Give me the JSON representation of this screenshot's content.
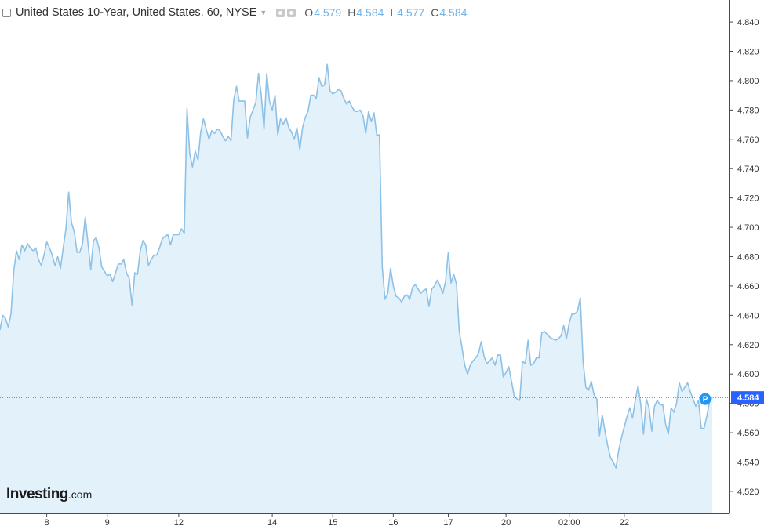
{
  "legend": {
    "title": "United States 10-Year, United States, 60, NYSE",
    "o_label": "O",
    "o_value": "4.579",
    "h_label": "H",
    "h_value": "4.584",
    "l_label": "L",
    "l_value": "4.577",
    "c_label": "C",
    "c_value": "4.584"
  },
  "brand": {
    "name": "Investing",
    "suffix": ".com"
  },
  "colors": {
    "line": "#8ec1e6",
    "fill": "#e3f1fb",
    "price_tag": "#2962ff",
    "p_marker": "#2196f3"
  },
  "chart_data": {
    "type": "area",
    "ylim": [
      4.505,
      4.855
    ],
    "y_ticks": [
      4.52,
      4.54,
      4.56,
      4.58,
      4.6,
      4.62,
      4.64,
      4.66,
      4.68,
      4.7,
      4.72,
      4.74,
      4.76,
      4.78,
      4.8,
      4.82,
      4.84
    ],
    "y_tick_labels": [
      "4.520",
      "4.540",
      "4.560",
      "4.580",
      "4.600",
      "4.620",
      "4.640",
      "4.660",
      "4.680",
      "4.700",
      "4.720",
      "4.740",
      "4.760",
      "4.780",
      "4.800",
      "4.820",
      "4.840"
    ],
    "x_labels": [
      {
        "label": "8",
        "index": 17
      },
      {
        "label": "9",
        "index": 39
      },
      {
        "label": "12",
        "index": 65
      },
      {
        "label": "14",
        "index": 99
      },
      {
        "label": "15",
        "index": 121
      },
      {
        "label": "16",
        "index": 143
      },
      {
        "label": "17",
        "index": 163
      },
      {
        "label": "20",
        "index": 184
      },
      {
        "label": "02:00",
        "index": 207
      },
      {
        "label": "22",
        "index": 227
      }
    ],
    "last_price": 4.584,
    "last_price_label": "4.584",
    "marker_label": "P",
    "values": [
      4.63,
      4.64,
      4.638,
      4.632,
      4.641,
      4.67,
      4.684,
      4.678,
      4.688,
      4.684,
      4.689,
      4.686,
      4.684,
      4.686,
      4.678,
      4.674,
      4.681,
      4.69,
      4.686,
      4.681,
      4.674,
      4.68,
      4.672,
      4.686,
      4.699,
      4.724,
      4.703,
      4.697,
      4.683,
      4.683,
      4.689,
      4.707,
      4.689,
      4.671,
      4.691,
      4.693,
      4.686,
      4.673,
      4.67,
      4.667,
      4.668,
      4.663,
      4.669,
      4.675,
      4.675,
      4.678,
      4.669,
      4.665,
      4.647,
      4.669,
      4.668,
      4.684,
      4.691,
      4.688,
      4.674,
      4.678,
      4.681,
      4.681,
      4.686,
      4.692,
      4.694,
      4.695,
      4.688,
      4.695,
      4.695,
      4.695,
      4.699,
      4.696,
      4.781,
      4.75,
      4.741,
      4.752,
      4.746,
      4.765,
      4.774,
      4.767,
      4.76,
      4.766,
      4.764,
      4.767,
      4.766,
      4.762,
      4.759,
      4.762,
      4.759,
      4.787,
      4.796,
      4.786,
      4.786,
      4.786,
      4.761,
      4.775,
      4.78,
      4.785,
      4.805,
      4.79,
      4.767,
      4.805,
      4.786,
      4.78,
      4.79,
      4.763,
      4.774,
      4.77,
      4.775,
      4.768,
      4.765,
      4.76,
      4.768,
      4.753,
      4.768,
      4.775,
      4.779,
      4.79,
      4.79,
      4.788,
      4.802,
      4.796,
      4.797,
      4.811,
      4.793,
      4.791,
      4.792,
      4.794,
      4.793,
      4.788,
      4.784,
      4.786,
      4.782,
      4.779,
      4.779,
      4.78,
      4.776,
      4.764,
      4.779,
      4.772,
      4.778,
      4.763,
      4.763,
      4.673,
      4.651,
      4.655,
      4.672,
      4.66,
      4.653,
      4.652,
      4.649,
      4.653,
      4.654,
      4.651,
      4.659,
      4.661,
      4.658,
      4.655,
      4.657,
      4.658,
      4.646,
      4.658,
      4.66,
      4.664,
      4.66,
      4.655,
      4.663,
      4.683,
      4.662,
      4.668,
      4.661,
      4.629,
      4.618,
      4.606,
      4.6,
      4.606,
      4.609,
      4.611,
      4.614,
      4.622,
      4.612,
      4.607,
      4.609,
      4.611,
      4.606,
      4.613,
      4.613,
      4.598,
      4.601,
      4.605,
      4.595,
      4.585,
      4.583,
      4.582,
      4.609,
      4.607,
      4.623,
      4.606,
      4.607,
      4.611,
      4.611,
      4.628,
      4.629,
      4.627,
      4.625,
      4.624,
      4.623,
      4.624,
      4.626,
      4.633,
      4.624,
      4.635,
      4.641,
      4.641,
      4.643,
      4.652,
      4.609,
      4.591,
      4.589,
      4.595,
      4.586,
      4.583,
      4.558,
      4.572,
      4.561,
      4.551,
      4.543,
      4.54,
      4.536,
      4.548,
      4.557,
      4.564,
      4.571,
      4.577,
      4.57,
      4.582,
      4.592,
      4.579,
      4.559,
      4.583,
      4.577,
      4.561,
      4.578,
      4.582,
      4.579,
      4.579,
      4.566,
      4.559,
      4.577,
      4.574,
      4.58,
      4.594,
      4.588,
      4.591,
      4.594,
      4.588,
      4.583,
      4.578,
      4.582,
      4.563,
      4.563,
      4.571,
      4.581,
      4.584
    ]
  }
}
